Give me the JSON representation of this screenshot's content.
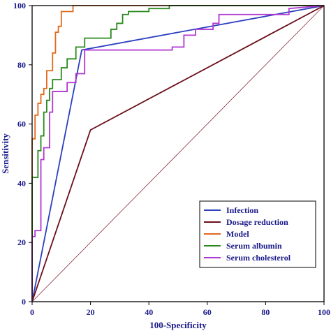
{
  "chart_data": {
    "type": "line",
    "title": "",
    "xlabel": "100-Specificity",
    "ylabel": "Sensitivity",
    "xlim": [
      0,
      100
    ],
    "ylim": [
      0,
      100
    ],
    "x_ticks": [
      0,
      20,
      40,
      60,
      80,
      100
    ],
    "y_ticks": [
      0,
      20,
      40,
      60,
      80,
      100
    ],
    "x_tick_labels": [
      "0",
      "20",
      "40",
      "60",
      "80",
      "100"
    ],
    "y_tick_labels": [
      "0",
      "20",
      "40",
      "60",
      "80",
      "100"
    ],
    "grid": false,
    "legend_position": "bottom-right",
    "reference_line": {
      "x": [
        0,
        100
      ],
      "y": [
        0,
        100
      ],
      "color": "#8b2a3a"
    },
    "series": [
      {
        "name": "Infection",
        "color": "#2b3fbf",
        "x": [
          0,
          17,
          100
        ],
        "y": [
          0,
          85,
          100
        ]
      },
      {
        "name": "Dosage reduction",
        "color": "#6b0f1a",
        "x": [
          0,
          20,
          100
        ],
        "y": [
          0,
          58,
          100
        ]
      },
      {
        "name": "Model",
        "color": "#e06a1c",
        "x": [
          0,
          0,
          1,
          1,
          2,
          2,
          3,
          3,
          4,
          4,
          5,
          5,
          7,
          7,
          8,
          8,
          9,
          9,
          10,
          10,
          14,
          14,
          47,
          100
        ],
        "y": [
          0,
          55,
          55,
          63,
          63,
          67,
          67,
          70,
          70,
          72,
          72,
          78,
          78,
          84,
          84,
          91,
          91,
          93,
          93,
          98,
          98,
          100,
          100,
          100
        ]
      },
      {
        "name": "Serum albumin",
        "color": "#2a8a1e",
        "x": [
          0,
          0,
          2,
          2,
          3,
          3,
          4,
          4,
          5,
          5,
          6,
          6,
          7,
          7,
          10,
          10,
          12,
          12,
          15,
          15,
          18,
          18,
          27,
          27,
          29,
          29,
          31,
          31,
          33,
          33,
          40,
          40,
          47,
          47,
          100
        ],
        "y": [
          0,
          42,
          42,
          51,
          51,
          56,
          56,
          64,
          64,
          68,
          68,
          72,
          72,
          75,
          75,
          79,
          79,
          82,
          82,
          86,
          86,
          89,
          89,
          92,
          92,
          94,
          94,
          97,
          97,
          98,
          98,
          99,
          99,
          100,
          100
        ]
      },
      {
        "name": "Serum cholesterol",
        "color": "#b037d1",
        "x": [
          0,
          0,
          1,
          1,
          3,
          3,
          4,
          4,
          6,
          6,
          7,
          7,
          12,
          12,
          15,
          15,
          18,
          18,
          48,
          48,
          52,
          52,
          56,
          56,
          62,
          62,
          64,
          64,
          88,
          88,
          100
        ],
        "y": [
          0,
          22,
          22,
          24,
          24,
          48,
          48,
          52,
          52,
          64,
          64,
          71,
          71,
          74,
          74,
          77,
          77,
          85,
          85,
          86,
          86,
          90,
          90,
          92,
          92,
          94,
          94,
          97,
          97,
          99,
          100
        ]
      }
    ]
  }
}
